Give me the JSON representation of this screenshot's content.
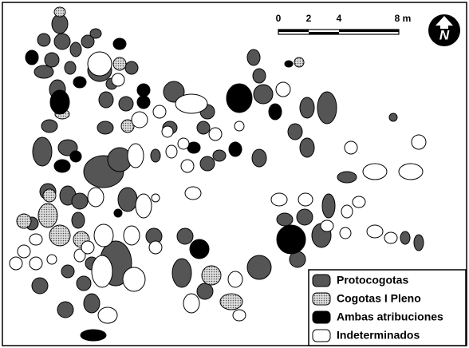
{
  "north": "N",
  "scale": {
    "labels": [
      "0",
      "2",
      "4",
      "8 m"
    ]
  },
  "legend": {
    "items": [
      {
        "label": "Protocogotas"
      },
      {
        "label": "Cogotas I Pleno"
      },
      {
        "label": "Ambas atribuciones"
      },
      {
        "label": "Indeterminados"
      }
    ]
  }
}
